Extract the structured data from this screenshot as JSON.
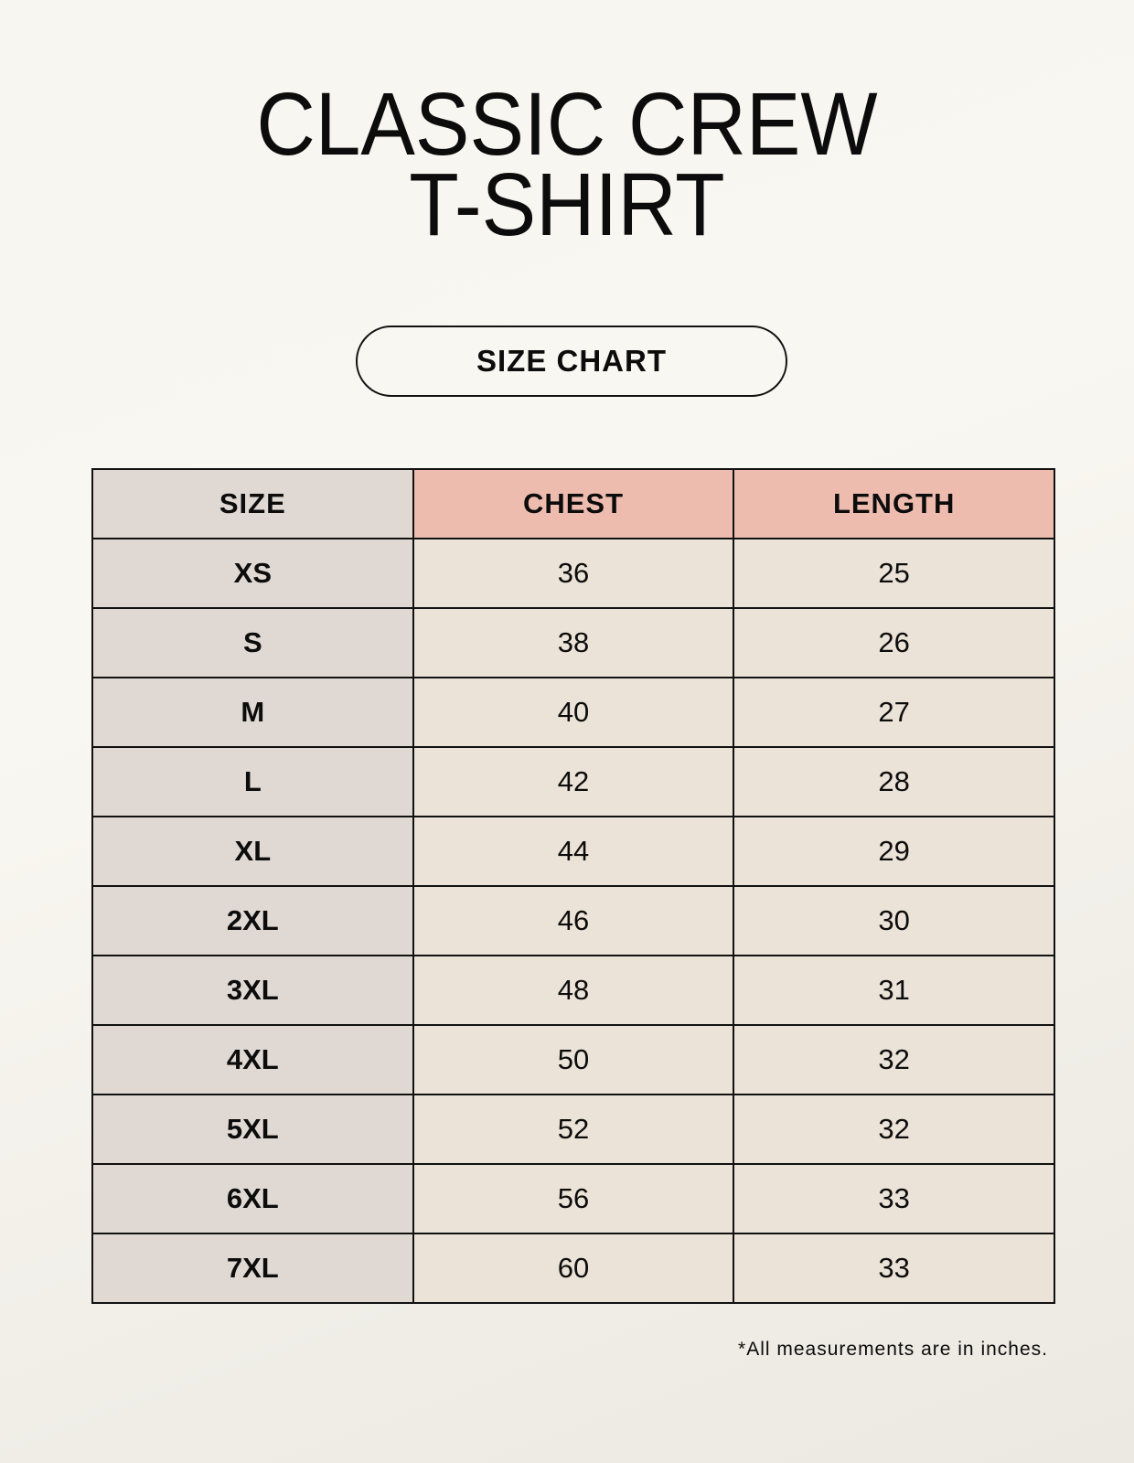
{
  "title": {
    "line1": "CLASSIC CREW",
    "line2": "T-SHIRT"
  },
  "badge": "SIZE CHART",
  "table": {
    "headers": [
      "SIZE",
      "CHEST",
      "LENGTH"
    ],
    "rows": [
      [
        "XS",
        "36",
        "25"
      ],
      [
        "S",
        "38",
        "26"
      ],
      [
        "M",
        "40",
        "27"
      ],
      [
        "L",
        "42",
        "28"
      ],
      [
        "XL",
        "44",
        "29"
      ],
      [
        "2XL",
        "46",
        "30"
      ],
      [
        "3XL",
        "48",
        "31"
      ],
      [
        "4XL",
        "50",
        "32"
      ],
      [
        "5XL",
        "52",
        "32"
      ],
      [
        "6XL",
        "56",
        "33"
      ],
      [
        "7XL",
        "60",
        "33"
      ]
    ]
  },
  "footnote": "*All measurements are in inches.",
  "colors": {
    "size_column": "#e0d9d3",
    "header_accent": "#eebcaf",
    "value_cells": "#ebe3d8"
  }
}
